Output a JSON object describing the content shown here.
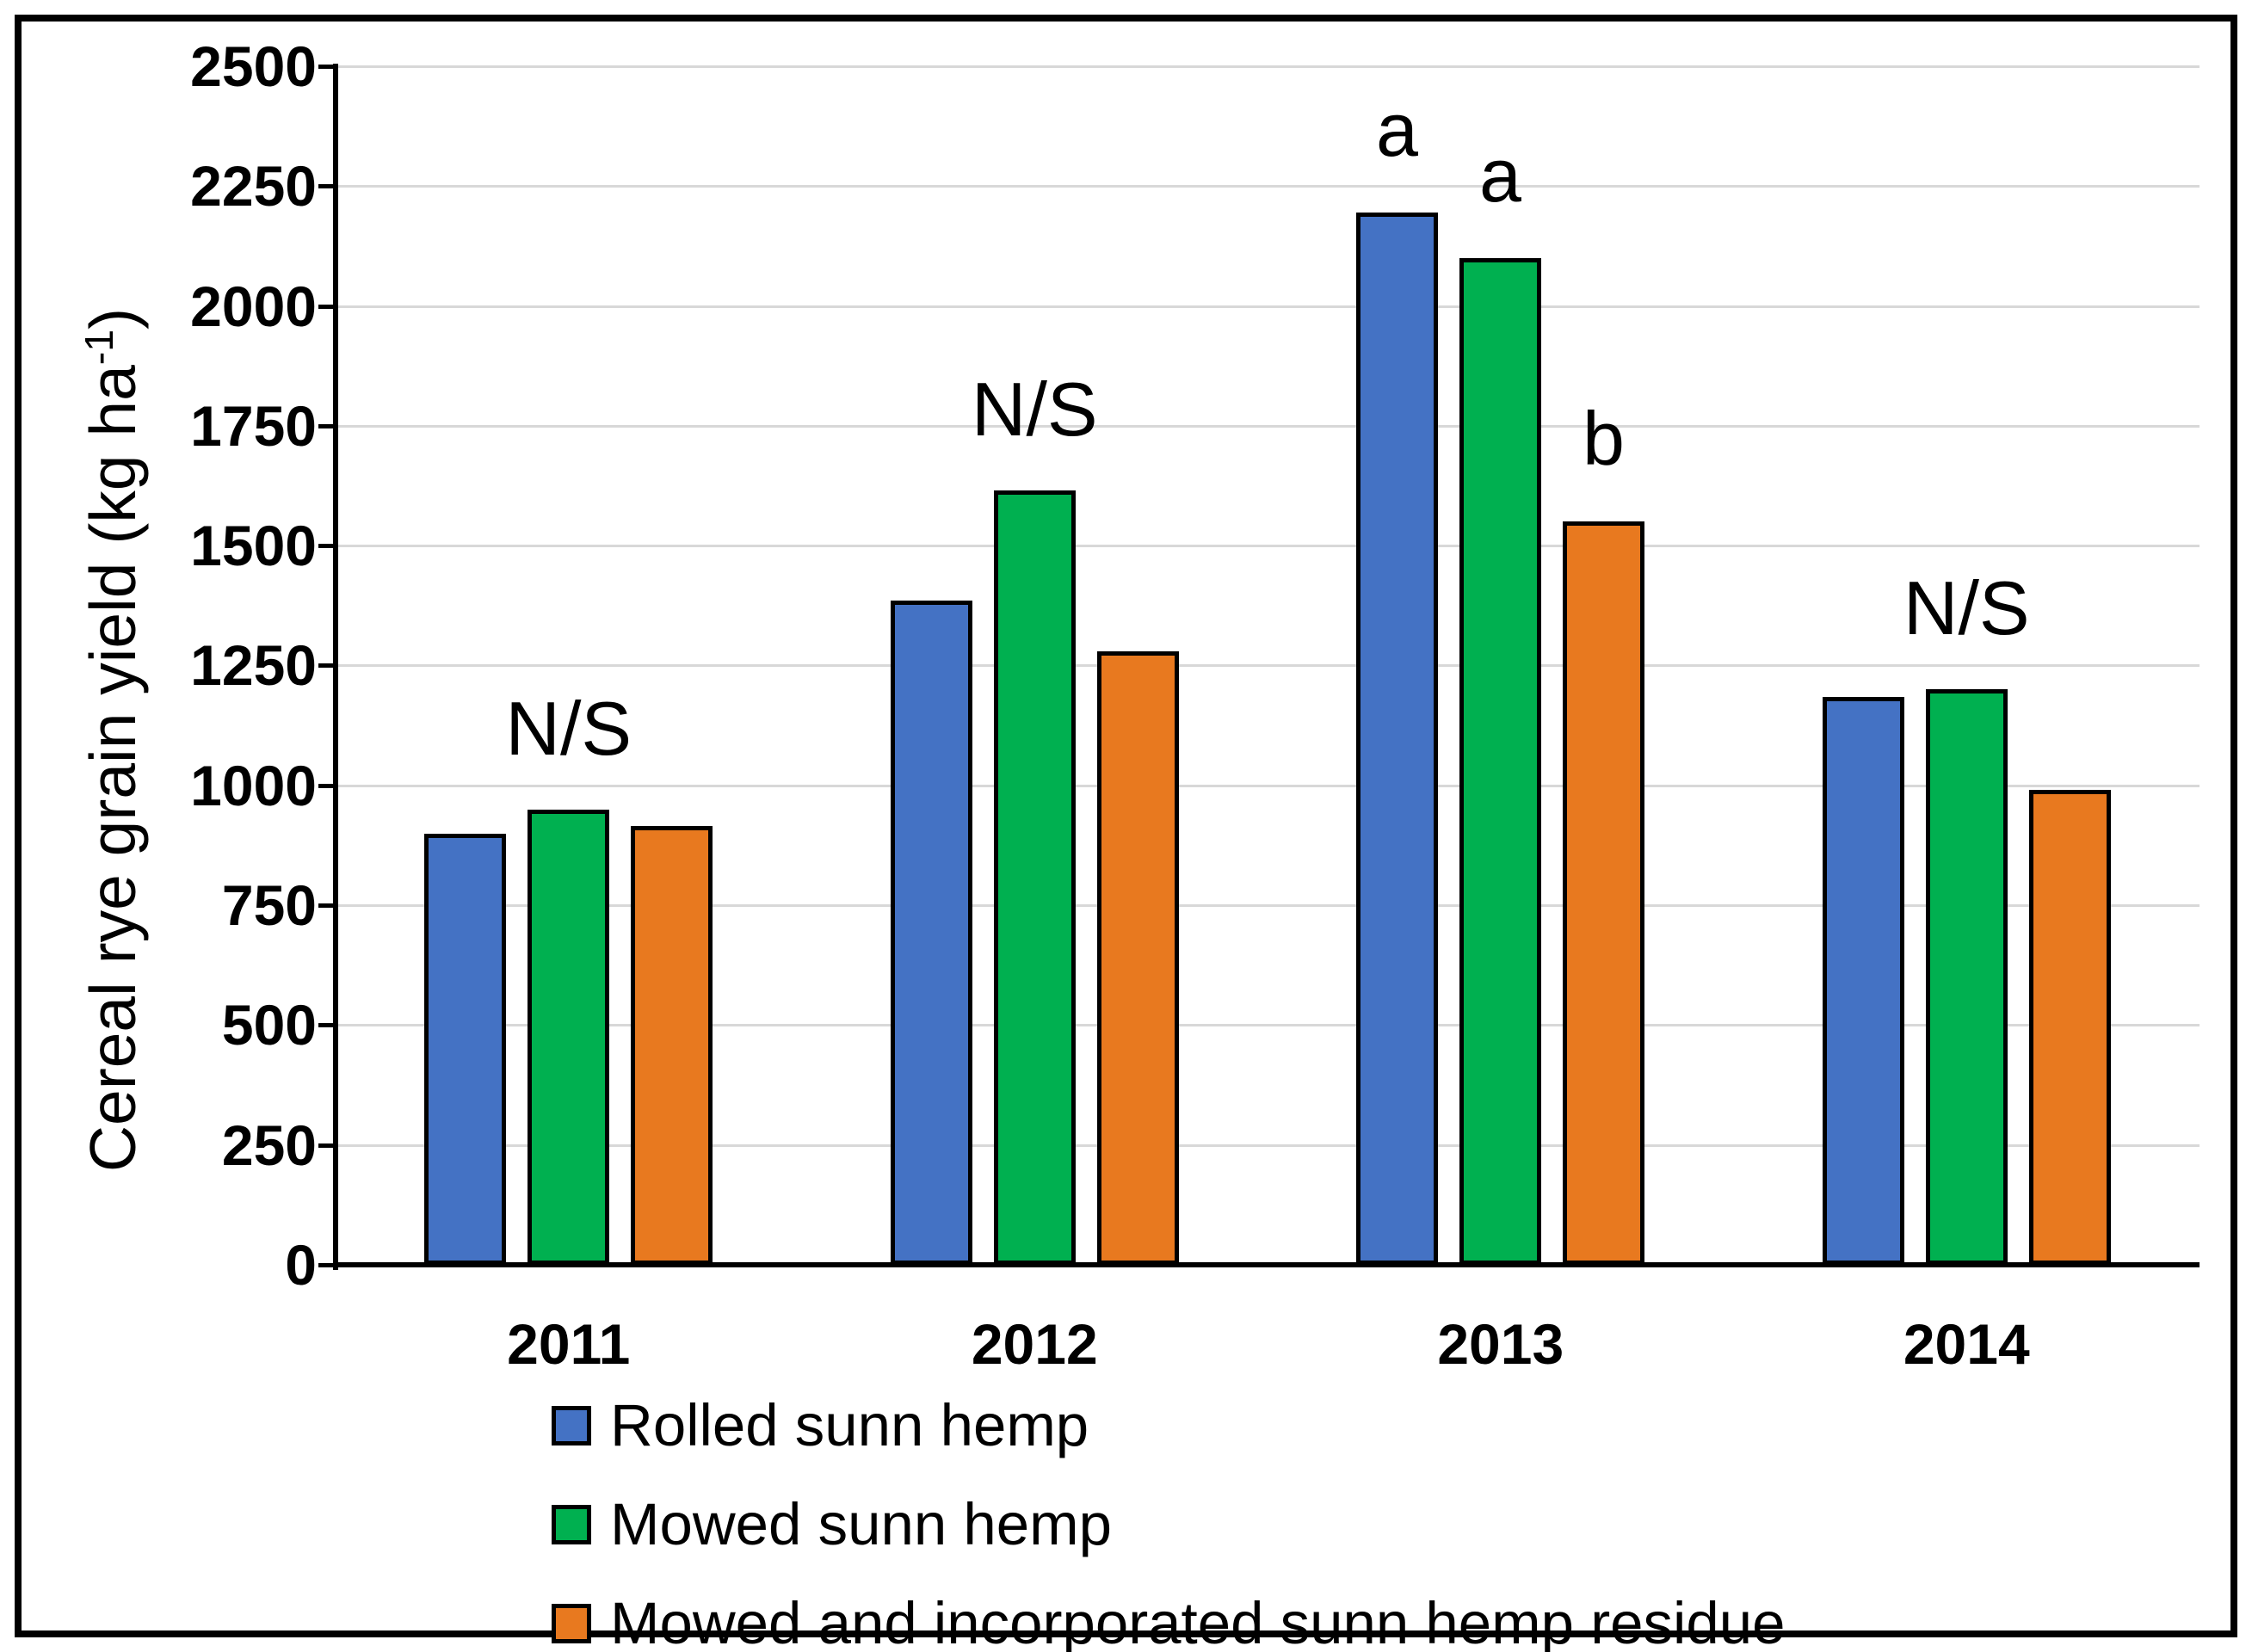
{
  "chart_data": {
    "type": "bar",
    "title": "",
    "ylabel_main": "Cereal rye grain yield (kg ha",
    "ylabel_sup": "-1",
    "ylabel_close": ")",
    "xlabel": "",
    "categories": [
      "2011",
      "2012",
      "2013",
      "2014"
    ],
    "series": [
      {
        "name": "Rolled sunn hemp",
        "color": "#4472C4",
        "values": [
          900,
          1385,
          2195,
          1185
        ],
        "sig_letters": [
          "",
          "",
          "a",
          ""
        ]
      },
      {
        "name": "Mowed sunn hemp",
        "color": "#00B050",
        "values": [
          950,
          1615,
          2100,
          1200
        ],
        "sig_letters": [
          "",
          "",
          "a",
          ""
        ]
      },
      {
        "name": "Mowed and incorporated sunn hemp residue",
        "color": "#E8791F",
        "values": [
          915,
          1280,
          1550,
          990
        ],
        "sig_letters": [
          "",
          "",
          "b",
          ""
        ]
      }
    ],
    "group_annotations": [
      "N/S",
      "N/S",
      "",
      "N/S"
    ],
    "ylim": [
      0,
      2500
    ],
    "ytick_step": 250,
    "yticks": [
      "0",
      "250",
      "500",
      "750",
      "1000",
      "1250",
      "1500",
      "1750",
      "2000",
      "2250",
      "2500"
    ],
    "grid": true,
    "gridline_color": "#D8D8D8",
    "axis_color": "#000000",
    "legend_position": "bottom-left"
  }
}
